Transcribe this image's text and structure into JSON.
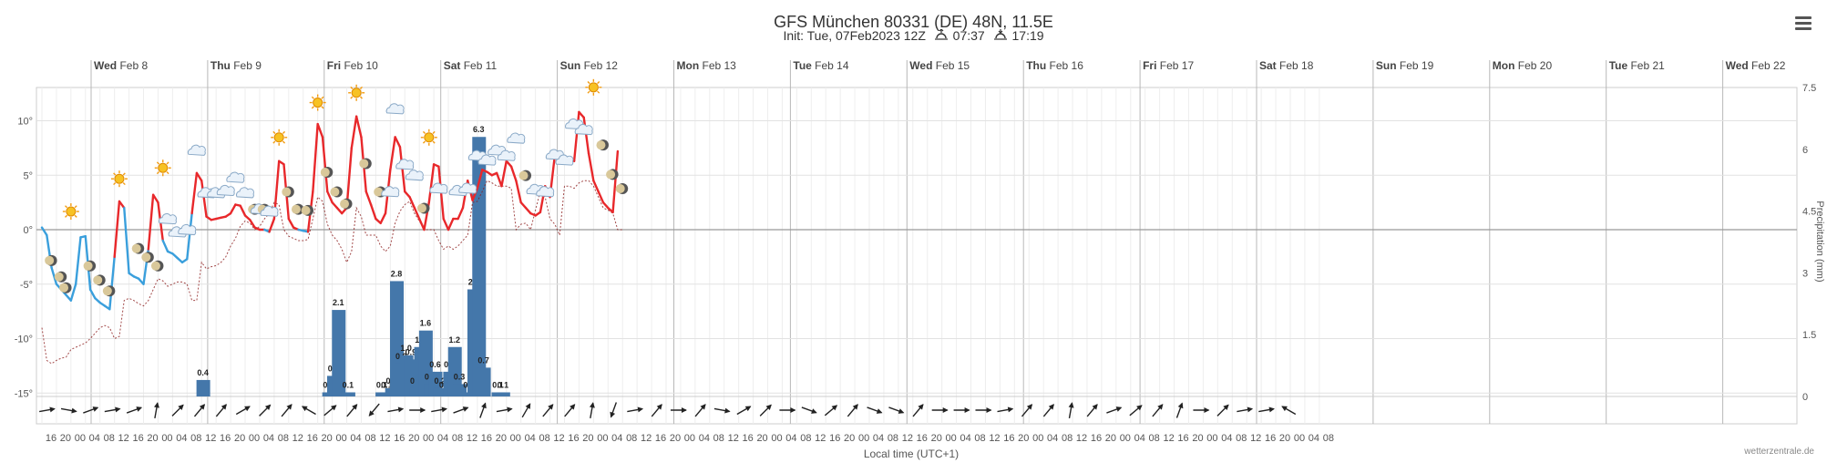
{
  "header": {
    "title": "GFS München 80331 (DE) 48N, 11.5E",
    "subtitle": "Init: Tue, 07Feb2023 12Z",
    "sunrise": "07:37",
    "sunset": "17:19"
  },
  "footer": {
    "xaxis_title": "Local time (UTC+1)",
    "credit": "wetterzentrale.de"
  },
  "chart_data": {
    "type": "line",
    "x_start_hour": 16,
    "x_step_hours": 4,
    "x_tick_labels": [
      "16",
      "20",
      "00",
      "04",
      "08",
      "12",
      "16",
      "20",
      "00",
      "04",
      "08",
      "12",
      "16",
      "20",
      "00",
      "04",
      "08",
      "12",
      "16",
      "20",
      "00",
      "04",
      "08",
      "12",
      "16",
      "20",
      "00",
      "04",
      "08",
      "12",
      "16",
      "20",
      "00",
      "04",
      "08",
      "12",
      "16",
      "20",
      "00",
      "04",
      "08",
      "12",
      "16",
      "20",
      "00",
      "04",
      "08",
      "12",
      "16",
      "20",
      "00",
      "04",
      "08",
      "12",
      "16",
      "20",
      "00",
      "04",
      "08",
      "12",
      "16",
      "20",
      "00",
      "04",
      "08",
      "12",
      "16",
      "20",
      "00",
      "04",
      "08",
      "12",
      "16",
      "20",
      "00",
      "04",
      "08",
      "12",
      "16",
      "20",
      "00",
      "04",
      "08",
      "12",
      "16",
      "20",
      "00",
      "04",
      "08"
    ],
    "day_labels": [
      {
        "dow": "Wed",
        "date": "Feb 8"
      },
      {
        "dow": "Thu",
        "date": "Feb 9"
      },
      {
        "dow": "Fri",
        "date": "Feb 10"
      },
      {
        "dow": "Sat",
        "date": "Feb 11"
      },
      {
        "dow": "Sun",
        "date": "Feb 12"
      },
      {
        "dow": "Mon",
        "date": "Feb 13"
      },
      {
        "dow": "Tue",
        "date": "Feb 14"
      },
      {
        "dow": "Wed",
        "date": "Feb 15"
      },
      {
        "dow": "Thu",
        "date": "Feb 16"
      },
      {
        "dow": "Fri",
        "date": "Feb 17"
      },
      {
        "dow": "Sat",
        "date": "Feb 18"
      },
      {
        "dow": "Sun",
        "date": "Feb 19"
      },
      {
        "dow": "Mon",
        "date": "Feb 20"
      },
      {
        "dow": "Tue",
        "date": "Feb 21"
      },
      {
        "dow": "Wed",
        "date": "Feb 22"
      }
    ],
    "y_left": {
      "ticks": [
        "10°",
        "5°",
        "0°",
        "-5°",
        "-10°",
        "-15°"
      ],
      "values": [
        10,
        5,
        0,
        -5,
        -10,
        -15
      ],
      "range": [
        -15,
        12.5
      ]
    },
    "y_right": {
      "ticks": [
        "7.5",
        "6",
        "4.5",
        "3",
        "1.5",
        "0"
      ],
      "values": [
        7.5,
        6,
        4.5,
        3,
        1.5,
        0
      ],
      "range": [
        0,
        7.5
      ],
      "label": "Precipitation (mm)"
    },
    "series": [
      {
        "role": "temperature",
        "color_warm": "#e8282b",
        "color_cold": "#3a9fdc",
        "values": [
          0.2,
          -0.5,
          -3.5,
          -5,
          -5.5,
          -6,
          -6.5,
          -5,
          -0.7,
          -0.6,
          -5.5,
          -6.3,
          -6.7,
          -7,
          -7.3,
          -2.5,
          2.6,
          2,
          -4,
          -4.3,
          -4.5,
          -5,
          -1.8,
          3.2,
          2.5,
          -1,
          -2,
          -2.2,
          -2.6,
          -3,
          -2.7,
          1.5,
          5.2,
          4.5,
          1.2,
          0.9,
          1,
          1.1,
          1.2,
          1.5,
          2.3,
          2.2,
          1.3,
          0.9,
          0.2,
          0,
          0,
          -0.2,
          1,
          6.3,
          6,
          1,
          0.2,
          0,
          -0.1,
          -0.2,
          3.5,
          9.7,
          8.5,
          3.5,
          2.5,
          2,
          1.5,
          2,
          7.5,
          10.4,
          8.5,
          3.5,
          2.3,
          1,
          0.6,
          1.5,
          5.5,
          8.5,
          7.6,
          3.5,
          3,
          2,
          1,
          0,
          2.5,
          6,
          5.8,
          1,
          0,
          1,
          1,
          2,
          4.5,
          2.7,
          3.8,
          5.5,
          5.3,
          5,
          5.2,
          4,
          6.3,
          5.8,
          4.5,
          2.5,
          2,
          1.5,
          1.3,
          1.6,
          4,
          3,
          6.8,
          6.7,
          6.6,
          6.5,
          6.3,
          10.8,
          10.3,
          7,
          4.5,
          3.5,
          2.5,
          2,
          1.6,
          7.2
        ]
      },
      {
        "role": "dewpoint",
        "color": "#8b1a1a",
        "values": [
          -9,
          -12,
          -12.3,
          -12,
          -11.8,
          -11.7,
          -11,
          -10.8,
          -10.6,
          -10.4,
          -10,
          -9.5,
          -9,
          -8.8,
          -9,
          -10,
          -9.8,
          -6.5,
          -6.3,
          -6.5,
          -6.8,
          -7,
          -6.5,
          -5.5,
          -4.5,
          -4.7,
          -5.2,
          -5,
          -4.8,
          -4.8,
          -5,
          -6.5,
          -6.5,
          -3,
          -3.6,
          -3.4,
          -3.3,
          -3,
          -2.5,
          -1.5,
          -0.8,
          0.3,
          0.8,
          0.6,
          0,
          0.3,
          1,
          1.5,
          2.5,
          2.3,
          0,
          -0.6,
          -0.8,
          -1,
          -1,
          -0.9,
          1,
          3,
          2.6,
          0.5,
          -0.5,
          -1,
          -1.8,
          -3,
          -2,
          2,
          1.2,
          -0.5,
          -0.5,
          -0.5,
          -1.5,
          -2,
          -1.5,
          0.6,
          1.7,
          2.3,
          2.6,
          1.5,
          0.8,
          0,
          0,
          0,
          -1,
          -1.8,
          -1.5,
          -1.8,
          -1.5,
          -1,
          -0.5,
          2.5,
          2.6,
          3.5,
          4.5,
          4.3,
          4,
          4,
          4,
          3.8,
          0,
          0.5,
          0.6,
          0,
          1.8,
          3.5,
          3,
          1,
          0.5,
          -0.5,
          4,
          4,
          3.8,
          4.3,
          4.5,
          4.5,
          4,
          3,
          2,
          1.8,
          1.5,
          0,
          0
        ]
      },
      {
        "role": "precipitation",
        "color": "#4477aa",
        "bars": [
          {
            "i": 31,
            "v": 0.4
          },
          {
            "i": 57,
            "v": 0.1
          },
          {
            "i": 58,
            "v": 0.5
          },
          {
            "i": 59,
            "v": 2.1
          },
          {
            "i": 61,
            "v": 0.1
          },
          {
            "i": 68,
            "v": 0.1
          },
          {
            "i": 69,
            "v": 0.1
          },
          {
            "i": 70,
            "v": 0.2
          },
          {
            "i": 71,
            "v": 2.8
          },
          {
            "i": 72,
            "v": 0.8
          },
          {
            "i": 73,
            "v": 1.0
          },
          {
            "i": 74,
            "v": 0.9
          },
          {
            "i": 75,
            "v": 0.2
          },
          {
            "i": 76,
            "v": 1.2
          },
          {
            "i": 77,
            "v": 1.6
          },
          {
            "i": 78,
            "v": 0.3
          },
          {
            "i": 79,
            "v": 0.6
          },
          {
            "i": 80,
            "v": 0.2
          },
          {
            "i": 81,
            "v": 0.1
          },
          {
            "i": 82,
            "v": 0.6
          },
          {
            "i": 83,
            "v": 1.2
          },
          {
            "i": 84,
            "v": 0.3
          },
          {
            "i": 86,
            "v": 0.1
          },
          {
            "i": 87,
            "v": 2.6
          },
          {
            "i": 88,
            "v": 6.3
          },
          {
            "i": 89,
            "v": 0.7
          },
          {
            "i": 92,
            "v": 0.1
          },
          {
            "i": 93,
            "v": 0.1
          }
        ]
      }
    ],
    "weather_icons": [
      {
        "i": 6,
        "icon": "sun",
        "t": 1
      },
      {
        "i": 2,
        "icon": "moon",
        "t": -3.5
      },
      {
        "i": 4,
        "icon": "moon",
        "t": -5
      },
      {
        "i": 5,
        "icon": "moon",
        "t": -6
      },
      {
        "i": 10,
        "icon": "moon",
        "t": -4
      },
      {
        "i": 12,
        "icon": "moon",
        "t": -5.3
      },
      {
        "i": 14,
        "icon": "moon",
        "t": -6.3
      },
      {
        "i": 16,
        "icon": "sun",
        "t": 4
      },
      {
        "i": 20,
        "icon": "moon",
        "t": -2.4
      },
      {
        "i": 22,
        "icon": "moon",
        "t": -3.2
      },
      {
        "i": 24,
        "icon": "moon",
        "t": -4
      },
      {
        "i": 25,
        "icon": "sun",
        "t": 5
      },
      {
        "i": 26,
        "icon": "cloud",
        "t": 0.2
      },
      {
        "i": 28,
        "icon": "cloud",
        "t": -1
      },
      {
        "i": 30,
        "icon": "cloud",
        "t": -0.8
      },
      {
        "i": 32,
        "icon": "cloud",
        "t": 6.5
      },
      {
        "i": 34,
        "icon": "cloud",
        "t": 2.6
      },
      {
        "i": 36,
        "icon": "cloud",
        "t": 2.6
      },
      {
        "i": 38,
        "icon": "cloud",
        "t": 2.8
      },
      {
        "i": 40,
        "icon": "cloud",
        "t": 4
      },
      {
        "i": 42,
        "icon": "cloud",
        "t": 2.6
      },
      {
        "i": 44,
        "icon": "moon",
        "t": 1.2
      },
      {
        "i": 45,
        "icon": "cloud",
        "t": 1.1
      },
      {
        "i": 46,
        "icon": "moon",
        "t": 1.2
      },
      {
        "i": 47,
        "icon": "cloud",
        "t": 0.9
      },
      {
        "i": 49,
        "icon": "sun",
        "t": 7.8
      },
      {
        "i": 51,
        "icon": "moon",
        "t": 2.8
      },
      {
        "i": 53,
        "icon": "moon",
        "t": 1.2
      },
      {
        "i": 55,
        "icon": "moon",
        "t": 1.1
      },
      {
        "i": 57,
        "icon": "sun",
        "t": 11
      },
      {
        "i": 59,
        "icon": "moon",
        "t": 4.6
      },
      {
        "i": 61,
        "icon": "moon",
        "t": 2.8
      },
      {
        "i": 63,
        "icon": "moon",
        "t": 1.7
      },
      {
        "i": 65,
        "icon": "sun",
        "t": 11.9
      },
      {
        "i": 67,
        "icon": "moon",
        "t": 5.4
      },
      {
        "i": 70,
        "icon": "moon",
        "t": 2.8
      },
      {
        "i": 72,
        "icon": "cloud",
        "t": 2.7
      },
      {
        "i": 73,
        "icon": "cloud",
        "t": 10.3
      },
      {
        "i": 75,
        "icon": "cloud",
        "t": 5.2
      },
      {
        "i": 77,
        "icon": "cloud",
        "t": 4.2
      },
      {
        "i": 79,
        "icon": "moon",
        "t": 1.3
      },
      {
        "i": 80,
        "icon": "sun",
        "t": 7.8
      },
      {
        "i": 82,
        "icon": "cloud",
        "t": 3
      },
      {
        "i": 86,
        "icon": "cloud",
        "t": 2.8
      },
      {
        "i": 88,
        "icon": "cloud",
        "t": 3
      },
      {
        "i": 90,
        "icon": "cloud",
        "t": 6
      },
      {
        "i": 92,
        "icon": "cloud",
        "t": 5.6
      },
      {
        "i": 94,
        "icon": "cloud",
        "t": 6.5
      },
      {
        "i": 96,
        "icon": "cloud",
        "t": 6
      },
      {
        "i": 98,
        "icon": "cloud",
        "t": 7.6
      },
      {
        "i": 100,
        "icon": "moon",
        "t": 4.3
      },
      {
        "i": 102,
        "icon": "cloud",
        "t": 2.9
      },
      {
        "i": 104,
        "icon": "cloud",
        "t": 2.7
      },
      {
        "i": 106,
        "icon": "cloud",
        "t": 6.1
      },
      {
        "i": 108,
        "icon": "cloud",
        "t": 5.6
      },
      {
        "i": 110,
        "icon": "cloud",
        "t": 8.9
      },
      {
        "i": 112,
        "icon": "cloud",
        "t": 8.4
      },
      {
        "i": 114,
        "icon": "sun",
        "t": 12.4
      },
      {
        "i": 116,
        "icon": "moon",
        "t": 7.1
      },
      {
        "i": 118,
        "icon": "moon",
        "t": 4.4
      },
      {
        "i": 120,
        "icon": "moon",
        "t": 3.1
      }
    ],
    "wind_directions_deg": [
      80,
      100,
      70,
      80,
      70,
      10,
      45,
      40,
      40,
      60,
      45,
      40,
      300,
      50,
      40,
      220,
      80,
      90,
      80,
      70,
      20,
      80,
      30,
      40,
      40,
      10,
      200,
      80,
      40,
      90,
      40,
      100,
      60,
      45,
      90,
      110,
      50,
      40,
      110,
      110,
      40,
      90,
      90,
      90,
      80,
      40,
      40,
      10,
      40,
      70,
      50,
      40,
      20,
      90,
      45,
      80,
      80,
      300
    ],
    "legend": {
      "show": false
    },
    "grid": true
  }
}
